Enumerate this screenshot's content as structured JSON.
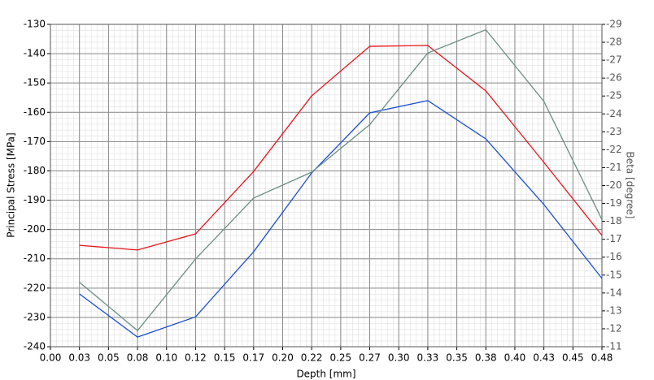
{
  "chart_data": {
    "type": "line",
    "x_label": "Depth [mm]",
    "y_label": "Principal Stress [MPa]",
    "y2_label": "Beta [degree]",
    "x": [
      0.025,
      0.075,
      0.125,
      0.175,
      0.225,
      0.275,
      0.325,
      0.375,
      0.425,
      0.475
    ],
    "xlim": [
      0,
      0.475
    ],
    "xticks": [
      {
        "value": 0,
        "label": "0.00"
      },
      {
        "value": 0.025,
        "label": "0.03"
      },
      {
        "value": 0.05,
        "label": "0.05"
      },
      {
        "value": 0.075,
        "label": "0.08"
      },
      {
        "value": 0.1,
        "label": "0.10"
      },
      {
        "value": 0.125,
        "label": "0.12"
      },
      {
        "value": 0.15,
        "label": "0.15"
      },
      {
        "value": 0.175,
        "label": "0.17"
      },
      {
        "value": 0.2,
        "label": "0.20"
      },
      {
        "value": 0.225,
        "label": "0.22"
      },
      {
        "value": 0.25,
        "label": "0.25"
      },
      {
        "value": 0.275,
        "label": "0.27"
      },
      {
        "value": 0.3,
        "label": "0.30"
      },
      {
        "value": 0.325,
        "label": "0.33"
      },
      {
        "value": 0.35,
        "label": "0.35"
      },
      {
        "value": 0.375,
        "label": "0.38"
      },
      {
        "value": 0.4,
        "label": "0.40"
      },
      {
        "value": 0.425,
        "label": "0.43"
      },
      {
        "value": 0.45,
        "label": "0.45"
      },
      {
        "value": 0.475,
        "label": "0.48"
      }
    ],
    "ylim": [
      -240,
      -130
    ],
    "yticks": [
      -130,
      -140,
      -150,
      -160,
      -170,
      -180,
      -190,
      -200,
      -210,
      -220,
      -230,
      -240
    ],
    "y2lim": [
      -11,
      -29
    ],
    "y2ticks": [
      -29,
      -28,
      -27,
      -26,
      -25,
      -24,
      -23,
      -22,
      -21,
      -20,
      -19,
      -18,
      -17,
      -16,
      -15,
      -14,
      -13,
      -12,
      -11
    ],
    "grid": true,
    "series": [
      {
        "color": "#e8141c",
        "values": [
          -205.4,
          -207.0,
          -201.5,
          -180.2,
          -154.4,
          -137.5,
          -137.2,
          -152.7,
          -177.1,
          -202.0
        ]
      },
      {
        "color": "#1a4fd0",
        "values": [
          -222.0,
          -236.7,
          -229.8,
          -207.6,
          -180.7,
          -160.2,
          -156.0,
          -169.1,
          -191.5,
          -216.7
        ]
      },
      {
        "color": "#6b8e84",
        "axis": "y2",
        "values": [
          -14.6,
          -11.9,
          -15.9,
          -19.3,
          -20.75,
          -23.4,
          -27.4,
          -28.7,
          -24.7,
          -18.1
        ]
      }
    ]
  }
}
